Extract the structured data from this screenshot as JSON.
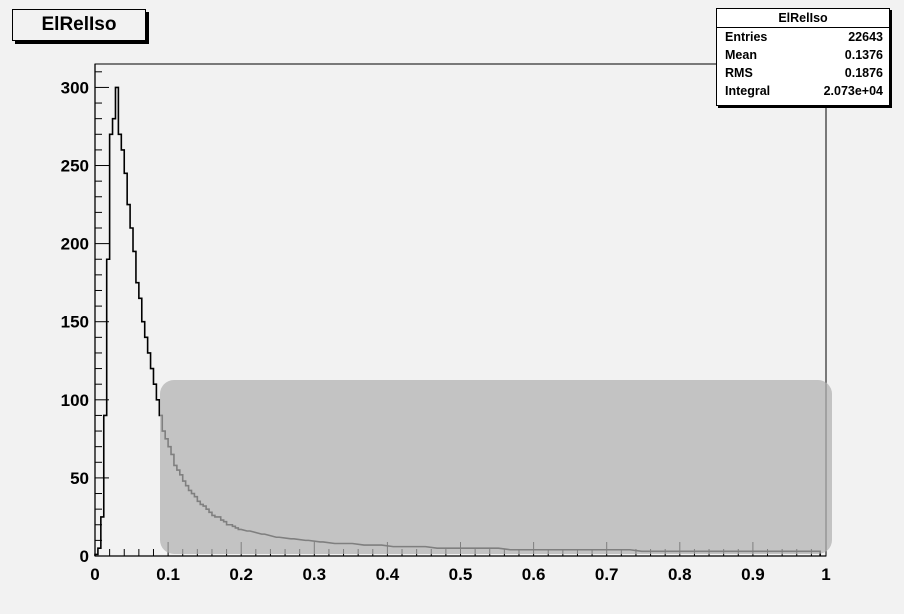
{
  "chart_data": {
    "type": "bar",
    "title": "ElRelIso",
    "xlim": [
      0,
      1
    ],
    "ylim": [
      0,
      315
    ],
    "x_ticks": [
      "0",
      "0.1",
      "0.2",
      "0.3",
      "0.4",
      "0.5",
      "0.6",
      "0.7",
      "0.8",
      "0.9",
      "1"
    ],
    "y_ticks": [
      "0",
      "50",
      "100",
      "150",
      "200",
      "250",
      "300"
    ],
    "grid": false,
    "series": [
      {
        "bin_width": 0.004,
        "x": [
          0.002,
          0.006,
          0.01,
          0.014,
          0.018,
          0.022,
          0.026,
          0.03,
          0.034,
          0.038,
          0.042,
          0.046,
          0.05,
          0.054,
          0.058,
          0.062,
          0.066,
          0.07,
          0.074,
          0.078,
          0.082,
          0.086,
          0.09,
          0.094,
          0.098,
          0.102,
          0.106,
          0.11,
          0.114,
          0.118,
          0.122,
          0.126,
          0.13,
          0.134,
          0.138,
          0.142,
          0.146,
          0.15,
          0.154,
          0.158,
          0.162,
          0.166,
          0.17,
          0.174,
          0.178,
          0.182,
          0.186,
          0.19,
          0.194,
          0.198,
          0.21,
          0.23,
          0.25,
          0.27,
          0.29,
          0.31,
          0.33,
          0.35,
          0.37,
          0.39,
          0.41,
          0.43,
          0.45,
          0.47,
          0.49,
          0.51,
          0.53,
          0.55,
          0.57,
          0.59,
          0.61,
          0.63,
          0.65,
          0.67,
          0.69,
          0.71,
          0.73,
          0.75,
          0.77,
          0.79,
          0.81,
          0.83,
          0.85,
          0.87,
          0.89,
          0.91,
          0.93,
          0.95,
          0.97,
          0.99
        ],
        "values": [
          1,
          5,
          25,
          90,
          190,
          270,
          280,
          300,
          270,
          260,
          245,
          225,
          210,
          195,
          175,
          165,
          150,
          140,
          130,
          120,
          110,
          100,
          90,
          80,
          75,
          70,
          65,
          58,
          55,
          52,
          48,
          45,
          42,
          40,
          38,
          35,
          33,
          32,
          30,
          28,
          26,
          25,
          25,
          23,
          22,
          20,
          20,
          19,
          18,
          17,
          16,
          14,
          12,
          11,
          10,
          9,
          8,
          8,
          7,
          7,
          6,
          6,
          6,
          5,
          5,
          5,
          5,
          5,
          4,
          4,
          4,
          4,
          4,
          4,
          4,
          4,
          4,
          3,
          3,
          3,
          3,
          3,
          3,
          3,
          3,
          3,
          3,
          3,
          3,
          3
        ]
      }
    ]
  },
  "stats": {
    "title": "ElRelIso",
    "rows": [
      {
        "label": "Entries",
        "value": "22643"
      },
      {
        "label": "Mean",
        "value": "0.1376"
      },
      {
        "label": "RMS",
        "value": "0.1876"
      },
      {
        "label": "Integral",
        "value": "2.073e+04"
      }
    ]
  },
  "colors": {
    "background": "#f2f2f2",
    "histogram": "#000000",
    "overlay": "#b4b4b4"
  }
}
